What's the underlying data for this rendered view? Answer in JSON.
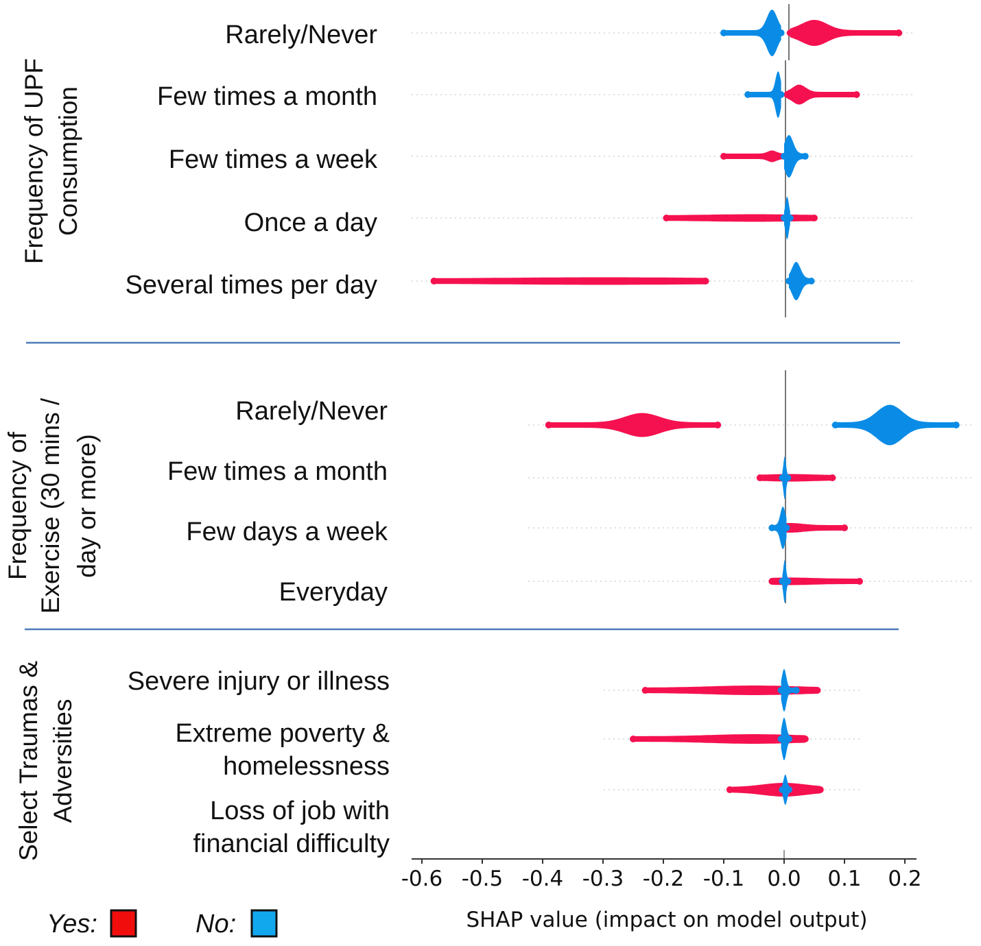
{
  "chart_data": {
    "type": "scatter",
    "subtype": "shap-beeswarm",
    "xlabel": "SHAP value (impact on model output)",
    "xlim": [
      -0.62,
      0.22
    ],
    "xticks": [
      -0.6,
      -0.5,
      -0.4,
      -0.3,
      -0.2,
      -0.1,
      0.0,
      0.1,
      0.2
    ],
    "xtick_labels": [
      "-0.6",
      "-0.5",
      "-0.4",
      "-0.3",
      "-0.2",
      "-0.1",
      "0.0",
      "0.1",
      "0.2"
    ],
    "colors": {
      "yes": "#f5114f",
      "no": "#0a8ce6"
    },
    "legend": {
      "yes_label": "Yes:",
      "no_label": "No:",
      "placement": "bottom-left"
    },
    "groups": [
      {
        "title_lines": [
          "Frequency of UPF",
          "Consumption"
        ],
        "rows": [
          {
            "label_lines": [
              "Rarely/Never"
            ],
            "yes": {
              "min": 0.01,
              "max": 0.19,
              "peak": 0.05,
              "spread": 0.03,
              "density": 0.5
            },
            "no": {
              "min": -0.1,
              "max": -0.005,
              "peak": -0.02,
              "spread": 0.012,
              "density": 1.0
            }
          },
          {
            "label_lines": [
              "Few times a month"
            ],
            "yes": {
              "min": 0.005,
              "max": 0.12,
              "peak": 0.025,
              "spread": 0.015,
              "density": 0.35
            },
            "no": {
              "min": -0.06,
              "max": -0.005,
              "peak": -0.01,
              "spread": 0.006,
              "density": 1.0
            }
          },
          {
            "label_lines": [
              "Few times a week"
            ],
            "yes": {
              "min": -0.1,
              "max": 0.0,
              "peak": -0.02,
              "spread": 0.01,
              "density": 0.15
            },
            "no": {
              "min": 0.0,
              "max": 0.035,
              "peak": 0.008,
              "spread": 0.01,
              "density": 0.9
            }
          },
          {
            "label_lines": [
              "Once a day"
            ],
            "yes": {
              "min": -0.195,
              "max": 0.05,
              "peak": -0.05,
              "spread": 0.1,
              "density": 0.05
            },
            "no": {
              "min": 0.0,
              "max": 0.01,
              "peak": 0.005,
              "spread": 0.004,
              "density": 0.9
            }
          },
          {
            "label_lines": [
              "Several times per day"
            ],
            "yes": {
              "min": -0.58,
              "max": -0.13,
              "peak": -0.3,
              "spread": 0.2,
              "density": 0.05
            },
            "no": {
              "min": 0.008,
              "max": 0.045,
              "peak": 0.02,
              "spread": 0.01,
              "density": 0.8
            }
          }
        ]
      },
      {
        "title_lines": [
          "Frequency of",
          "Exercise (30 mins /",
          "day or more)"
        ],
        "rows": [
          {
            "label_lines": [
              "Rarely/Never"
            ],
            "yes": {
              "min": -0.39,
              "max": -0.11,
              "peak": -0.235,
              "spread": 0.04,
              "density": 0.45
            },
            "no": {
              "min": 0.085,
              "max": 0.285,
              "peak": 0.175,
              "spread": 0.03,
              "density": 0.85
            }
          },
          {
            "label_lines": [
              "Few times a month"
            ],
            "yes": {
              "min": -0.04,
              "max": 0.08,
              "peak": 0.01,
              "spread": 0.05,
              "density": 0.05
            },
            "no": {
              "min": -0.003,
              "max": 0.006,
              "peak": 0.001,
              "spread": 0.003,
              "density": 0.9
            }
          },
          {
            "label_lines": [
              "Few days a week"
            ],
            "yes": {
              "min": 0.0,
              "max": 0.1,
              "peak": 0.01,
              "spread": 0.03,
              "density": 0.1
            },
            "no": {
              "min": -0.02,
              "max": 0.004,
              "peak": -0.002,
              "spread": 0.006,
              "density": 0.9
            }
          },
          {
            "label_lines": [
              "Everyday"
            ],
            "yes": {
              "min": -0.02,
              "max": 0.125,
              "peak": 0.01,
              "spread": 0.05,
              "density": 0.05
            },
            "no": {
              "min": -0.003,
              "max": 0.006,
              "peak": 0.001,
              "spread": 0.003,
              "density": 0.9
            }
          }
        ]
      },
      {
        "title_lines": [
          "Select Traumas &",
          "Adversities"
        ],
        "rows": [
          {
            "label_lines": [
              "Severe injury or illness"
            ],
            "yes": {
              "min": -0.23,
              "max": 0.055,
              "peak": -0.05,
              "spread": 0.1,
              "density": 0.1
            },
            "no": {
              "min": -0.005,
              "max": 0.02,
              "peak": 0.0,
              "spread": 0.005,
              "density": 0.9
            }
          },
          {
            "label_lines": [
              "Extreme poverty &",
              "homelessness"
            ],
            "yes": {
              "min": -0.25,
              "max": 0.035,
              "peak": -0.05,
              "spread": 0.1,
              "density": 0.1
            },
            "no": {
              "min": -0.005,
              "max": 0.008,
              "peak": 0.0,
              "spread": 0.005,
              "density": 0.9
            }
          },
          {
            "label_lines": [
              "Loss of job with",
              "financial difficulty"
            ],
            "yes": {
              "min": -0.09,
              "max": 0.06,
              "peak": 0.0,
              "spread": 0.05,
              "density": 0.2
            },
            "no": {
              "min": -0.003,
              "max": 0.008,
              "peak": 0.002,
              "spread": 0.004,
              "density": 0.6
            }
          }
        ]
      }
    ]
  }
}
